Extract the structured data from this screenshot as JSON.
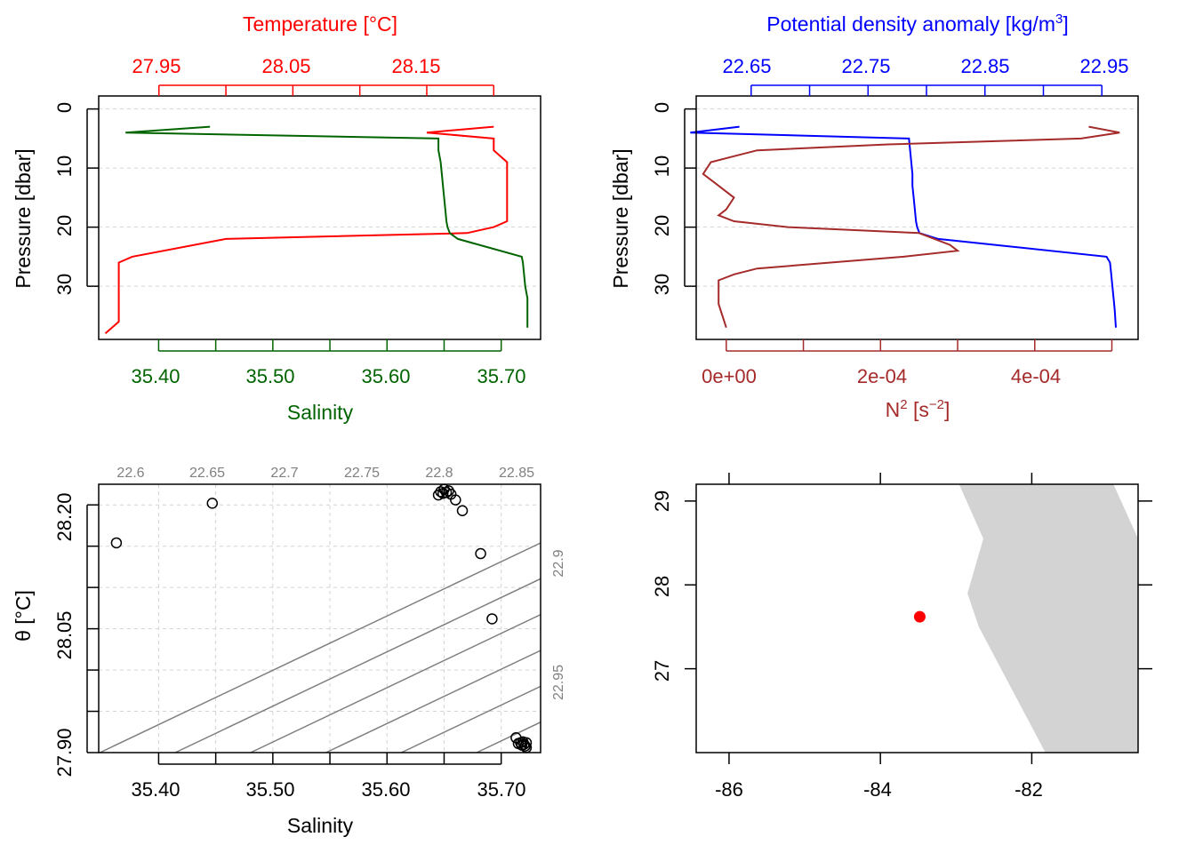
{
  "chart_data": [
    {
      "type": "line",
      "panel": "profile-temperature-salinity",
      "ylabel": "Pressure [dbar]",
      "yticks": [
        0,
        10,
        20,
        30
      ],
      "ylim": [
        39,
        -2.2
      ],
      "axis_top": {
        "label": "Temperature [°C]",
        "color": "#ff0000",
        "ticklabels": [
          "27.95",
          "28.05",
          "28.15"
        ],
        "ticks": [
          27.95,
          28.0,
          28.05,
          28.1,
          28.15,
          28.2
        ],
        "xlim": [
          27.905,
          28.235
        ]
      },
      "axis_bottom": {
        "label": "Salinity",
        "color": "#006400",
        "ticklabels": [
          "35.40",
          "35.50",
          "35.60",
          "35.70"
        ],
        "ticks": [
          35.4,
          35.45,
          35.5,
          35.55,
          35.6,
          35.65,
          35.7
        ],
        "xlim": [
          35.3475,
          35.7345
        ]
      },
      "grid": true,
      "series": [
        {
          "color": "#ff0000",
          "axis": "top",
          "x": [
            28.2,
            28.15,
            28.2,
            28.2,
            28.21,
            28.21,
            28.21,
            28.21,
            28.21,
            28.21,
            28.2,
            28.18,
            28.0,
            27.93,
            27.92,
            27.92,
            27.92,
            27.92,
            27.92,
            27.92,
            27.92,
            27.92,
            27.92,
            27.92,
            27.91
          ],
          "y": [
            3,
            4,
            5,
            7,
            9,
            11,
            13,
            15,
            17,
            19,
            20,
            21,
            22,
            25,
            26,
            28,
            29,
            30,
            31,
            32,
            33,
            34,
            35,
            36,
            38
          ]
        },
        {
          "color": "#006400",
          "axis": "bottom",
          "x": [
            35.445,
            35.371,
            35.645,
            35.645,
            35.647,
            35.648,
            35.649,
            35.65,
            35.651,
            35.652,
            35.653,
            35.655,
            35.662,
            35.718,
            35.719,
            35.72,
            35.721,
            35.722,
            35.723,
            35.723,
            35.723,
            35.723
          ],
          "y": [
            3,
            4,
            5,
            7,
            9,
            11,
            13,
            15,
            17,
            19,
            20,
            21,
            22,
            25,
            26,
            28,
            30,
            31,
            32,
            34,
            36,
            37
          ]
        }
      ]
    },
    {
      "type": "line",
      "panel": "profile-density-n2",
      "ylabel": "Pressure [dbar]",
      "yticks": [
        0,
        10,
        20,
        30
      ],
      "ylim": [
        39,
        -2.2
      ],
      "axis_top": {
        "label": "Potential density anomaly [kg/m3]",
        "color": "#0000ff",
        "ticklabels": [
          "22.65",
          "22.75",
          "22.85",
          "22.95"
        ],
        "ticks": [
          22.65,
          22.7,
          22.75,
          22.8,
          22.85,
          22.9,
          22.95
        ],
        "xlim": [
          22.603,
          22.981
        ]
      },
      "axis_bottom": {
        "label": "N2 [s-2]",
        "color": "#a52a2a",
        "ticklabels": [
          "0e+00",
          "2e-04",
          "4e-04"
        ],
        "ticks": [
          0,
          0.0001,
          0.0002,
          0.0003,
          0.0004,
          0.0005
        ],
        "xlim": [
          -3.9e-05,
          0.000534
        ]
      },
      "grid": true,
      "series": [
        {
          "color": "#0000ff",
          "axis": "top",
          "x": [
            22.64,
            22.598,
            22.785,
            22.786,
            22.787,
            22.788,
            22.788,
            22.789,
            22.79,
            22.791,
            22.792,
            22.794,
            22.81,
            22.954,
            22.957,
            22.958,
            22.959,
            22.96,
            22.961,
            22.962
          ],
          "y": [
            3,
            4,
            5,
            7,
            9,
            11,
            13,
            15,
            17,
            19,
            20,
            21,
            22,
            25,
            26,
            28,
            30,
            32,
            34,
            37
          ]
        },
        {
          "color": "#a52a2a",
          "axis": "bottom",
          "x": [
            0.00047,
            0.00051,
            0.00046,
            0.00021,
            4e-05,
            1e-05,
            -2e-05,
            -3e-05,
            -1e-05,
            1e-05,
            0.0,
            -1e-05,
            1e-05,
            8e-05,
            0.00025,
            0.00029,
            0.0003,
            0.00023,
            4e-05,
            1e-05,
            -1e-05,
            -1e-05,
            -1e-05,
            -0.0
          ],
          "y": [
            3,
            4,
            5,
            6,
            7,
            8,
            9,
            11,
            13,
            15,
            17,
            18,
            19,
            20,
            21,
            23,
            24,
            25,
            27,
            28,
            29,
            31,
            33,
            37
          ]
        }
      ]
    },
    {
      "type": "scatter",
      "panel": "ts-diagram",
      "xlabel": "Salinity",
      "ylabel": "θ [°C]",
      "xticklabels": [
        "35.40",
        "35.50",
        "35.60",
        "35.70"
      ],
      "xticks": [
        35.4,
        35.45,
        35.5,
        35.55,
        35.6,
        35.65,
        35.7
      ],
      "yticklabels": [
        "27.90",
        "28.05",
        "28.20"
      ],
      "yticks": [
        27.9,
        27.95,
        28.0,
        28.05,
        28.1,
        28.15,
        28.2
      ],
      "xlim": [
        35.3475,
        35.7345
      ],
      "ylim": [
        27.9,
        28.225
      ],
      "grid": true,
      "isopycnal_labels": {
        "top": [
          "22.6",
          "22.65",
          "22.7",
          "22.75",
          "22.8",
          "22.85"
        ],
        "right": [
          "22.9",
          "22.95"
        ]
      },
      "isopycnals": [
        {
          "label": "22.6",
          "b": 35.4145
        },
        {
          "label": "22.65",
          "b": 35.4805
        },
        {
          "label": "22.7",
          "b": 35.5465
        },
        {
          "label": "22.75",
          "b": 35.6125
        },
        {
          "label": "22.8",
          "b": 35.6785
        },
        {
          "label": "22.85",
          "b": 35.7445
        },
        {
          "label": "22.9",
          "b": 35.8105
        },
        {
          "label": "22.95",
          "b": 35.8765
        },
        {
          "label": "",
          "b": 35.3485
        },
        {
          "label": "",
          "b": 35.9425
        }
      ],
      "points": {
        "x": [
          35.363,
          35.447,
          35.645,
          35.647,
          35.649,
          35.65,
          35.652,
          35.654,
          35.656,
          35.66,
          35.666,
          35.682,
          35.692,
          35.713,
          35.715,
          35.717,
          35.718,
          35.719,
          35.72,
          35.721,
          35.722,
          35.722
        ],
        "y": [
          28.154,
          28.202,
          28.212,
          28.216,
          28.214,
          28.219,
          28.215,
          28.217,
          28.213,
          28.206,
          28.193,
          28.141,
          28.062,
          27.918,
          27.911,
          27.912,
          27.909,
          27.913,
          27.91,
          27.908,
          27.912,
          27.906
        ]
      }
    },
    {
      "type": "map",
      "panel": "location-map",
      "xticklabels": [
        "-86",
        "-84",
        "-82"
      ],
      "xticks": [
        -86,
        -84,
        -82
      ],
      "yticklabels": [
        "27",
        "28",
        "29"
      ],
      "yticks": [
        27,
        28,
        29
      ],
      "xlim": [
        -86.434,
        -80.595
      ],
      "ylim": [
        26.0,
        29.2
      ],
      "land_color": "#d3d3d3",
      "land_polygon": [
        [
          -82.96,
          29.2
        ],
        [
          -82.64,
          28.55
        ],
        [
          -82.85,
          27.9
        ],
        [
          -82.7,
          27.5
        ],
        [
          -81.82,
          26.0
        ],
        [
          -80.595,
          26.0
        ],
        [
          -80.595,
          28.55
        ],
        [
          -80.92,
          29.2
        ]
      ],
      "station": {
        "lon": -83.48,
        "lat": 27.62,
        "color": "#ff0000"
      }
    }
  ]
}
